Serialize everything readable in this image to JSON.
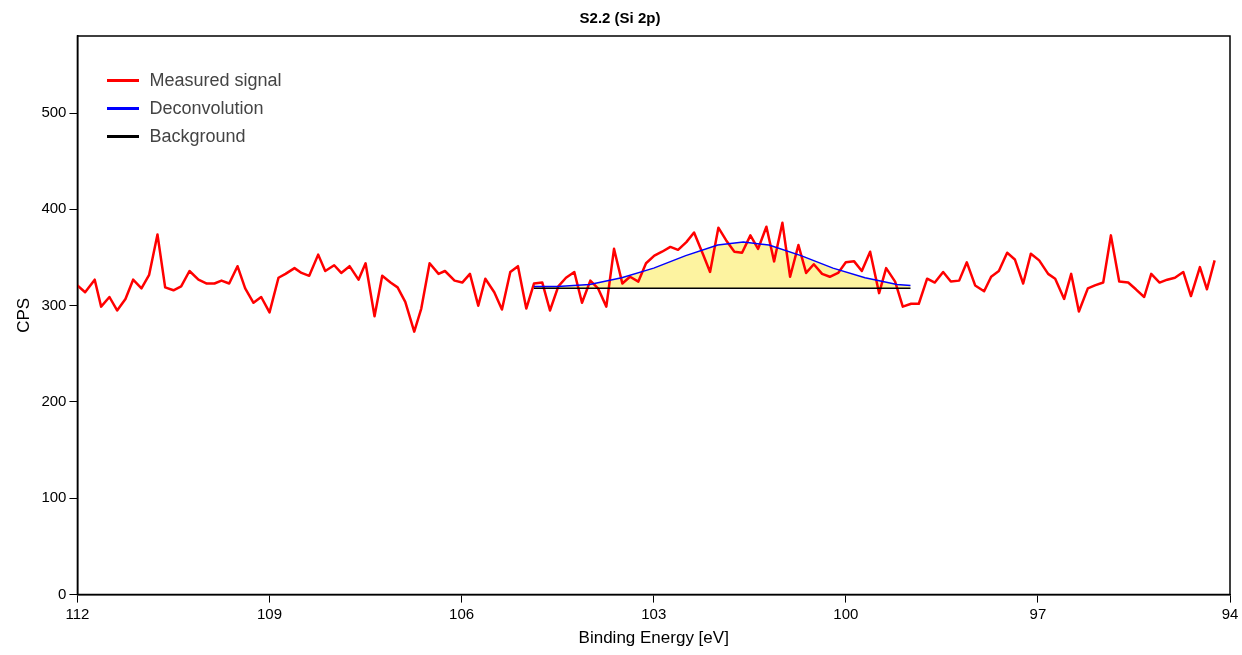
{
  "chart_data": {
    "type": "line",
    "title": "S2.2 (Si 2p)",
    "xlabel": "Binding Energy [eV]",
    "ylabel": "CPS",
    "xlim": [
      112,
      94
    ],
    "xticks": [
      112,
      109,
      106,
      103,
      100,
      97,
      94
    ],
    "ylim": [
      0,
      580
    ],
    "yticks": [
      0,
      100,
      200,
      300,
      400,
      500
    ],
    "grid": false,
    "legend": "top left",
    "marker": "none",
    "line_style": "solid",
    "series": [
      {
        "name": "Measured signal",
        "color": "#ff0000",
        "x": [
          112.0,
          111.88,
          111.73,
          111.63,
          111.5,
          111.38,
          111.25,
          111.13,
          111.0,
          110.88,
          110.75,
          110.63,
          110.5,
          110.38,
          110.25,
          110.11,
          109.98,
          109.86,
          109.75,
          109.63,
          109.5,
          109.38,
          109.25,
          109.13,
          109.0,
          108.86,
          108.75,
          108.61,
          108.5,
          108.38,
          108.24,
          108.13,
          107.99,
          107.88,
          107.75,
          107.61,
          107.5,
          107.36,
          107.24,
          107.11,
          107.0,
          106.88,
          106.74,
          106.63,
          106.5,
          106.36,
          106.26,
          106.11,
          105.99,
          105.87,
          105.74,
          105.63,
          105.49,
          105.37,
          105.24,
          105.12,
          104.99,
          104.87,
          104.74,
          104.62,
          104.49,
          104.37,
          104.24,
          104.12,
          103.99,
          103.87,
          103.74,
          103.62,
          103.49,
          103.37,
          103.24,
          103.12,
          102.99,
          102.87,
          102.74,
          102.62,
          102.49,
          102.37,
          102.24,
          102.12,
          101.99,
          101.87,
          101.74,
          101.62,
          101.49,
          101.37,
          101.24,
          101.12,
          100.99,
          100.87,
          100.74,
          100.62,
          100.5,
          100.37,
          100.25,
          100.12,
          100.0,
          99.87,
          99.75,
          99.62,
          99.48,
          99.37,
          99.23,
          99.11,
          98.98,
          98.86,
          98.73,
          98.61,
          98.48,
          98.36,
          98.23,
          98.11,
          97.98,
          97.84,
          97.73,
          97.61,
          97.48,
          97.36,
          97.23,
          97.11,
          96.98,
          96.84,
          96.73,
          96.59,
          96.48,
          96.36,
          96.22,
          96.11,
          95.98,
          95.86,
          95.73,
          95.59,
          95.47,
          95.34,
          95.23,
          95.1,
          94.98,
          94.86,
          94.73,
          94.61,
          94.47,
          94.36,
          94.24
        ],
        "values": [
          321,
          314,
          327,
          299,
          309,
          295,
          307,
          327,
          318,
          332,
          374,
          319,
          316,
          320,
          336,
          327,
          323,
          323,
          326,
          323,
          341,
          318,
          303,
          309,
          293,
          329,
          333,
          339,
          334,
          331,
          353,
          336,
          342,
          334,
          341,
          327,
          344,
          289,
          331,
          324,
          319,
          304,
          273,
          297,
          344,
          333,
          336,
          326,
          324,
          333,
          300,
          328,
          314,
          296,
          335,
          341,
          297,
          323,
          324,
          295,
          320,
          329,
          335,
          303,
          326,
          318,
          299,
          359,
          323,
          330,
          325,
          344,
          352,
          356,
          361,
          358,
          366,
          376,
          355,
          335,
          381,
          368,
          356,
          355,
          373,
          359,
          382,
          346,
          386,
          330,
          363,
          334,
          343,
          333,
          330,
          334,
          345,
          346,
          336,
          356,
          313,
          339,
          325,
          299,
          302,
          302,
          328,
          324,
          335,
          325,
          326,
          345,
          321,
          315,
          330,
          336,
          355,
          348,
          323,
          354,
          347,
          333,
          328,
          307,
          333,
          294,
          318,
          321,
          324,
          373,
          325,
          324,
          317,
          309,
          333,
          324,
          327,
          329,
          335,
          310,
          340,
          317,
          347
        ]
      },
      {
        "name": "Deconvolution",
        "color": "#0000ff",
        "x": [
          104.87,
          104.5,
          104.0,
          103.5,
          103.0,
          102.5,
          102.0,
          101.6,
          101.2,
          100.7,
          100.2,
          99.7,
          99.2,
          98.99
        ],
        "values": [
          320,
          320,
          322,
          329,
          339,
          352,
          363,
          366,
          363,
          352,
          339,
          329,
          322,
          321
        ],
        "lower": [
          318,
          318,
          318,
          318,
          318,
          318,
          318,
          318,
          318,
          318,
          318,
          318,
          318,
          318
        ],
        "upper": [
          320,
          320,
          322,
          329,
          339,
          352,
          363,
          366,
          363,
          352,
          339,
          329,
          322,
          321
        ]
      },
      {
        "name": "Background",
        "color": "#000000",
        "x": [
          104.87,
          98.99
        ],
        "values": [
          318,
          318
        ]
      }
    ]
  }
}
